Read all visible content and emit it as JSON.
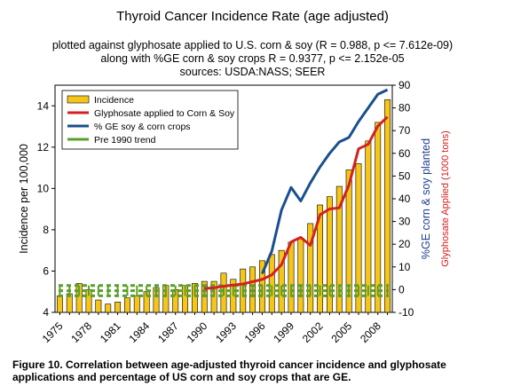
{
  "header": {
    "title": "Thyroid Cancer Incidence Rate (age adjusted)",
    "subtitle_lines": [
      "plotted against glyphosate applied to U.S. corn & soy (R = 0.988, p <= 7.612e-09)",
      "along with %GE corn & soy crops R = 0.9377, p <= 2.152e-05",
      "sources: USDA:NASS; SEER"
    ]
  },
  "caption": "Figure 10. Correlation between age-adjusted thyroid cancer incidence and glyphosate applications and percentage of US corn and soy crops that are GE.",
  "chart_data": {
    "type": "bar",
    "title": "Thyroid Cancer Incidence Rate (age adjusted)",
    "x": [
      1975,
      1976,
      1977,
      1978,
      1979,
      1980,
      1981,
      1982,
      1983,
      1984,
      1985,
      1986,
      1987,
      1988,
      1989,
      1990,
      1991,
      1992,
      1993,
      1994,
      1995,
      1996,
      1997,
      1998,
      1999,
      2000,
      2001,
      2002,
      2003,
      2004,
      2005,
      2006,
      2007,
      2008,
      2009
    ],
    "x_tick_labels": [
      "1975",
      "1978",
      "1981",
      "1984",
      "1987",
      "1990",
      "1993",
      "1996",
      "1999",
      "2002",
      "2005",
      "2008"
    ],
    "x_tick_values": [
      1975,
      1978,
      1981,
      1984,
      1987,
      1990,
      1993,
      1996,
      1999,
      2002,
      2005,
      2008
    ],
    "axes": {
      "left": {
        "label": "Incidence per 100,000",
        "ylim": [
          4,
          15
        ],
        "ticks": [
          4,
          6,
          8,
          10,
          12,
          14
        ]
      },
      "right1": {
        "label": "%GE corn & soy planted",
        "ylim": [
          -10,
          90
        ],
        "ticks": [
          -10,
          0,
          10,
          20,
          30,
          40,
          50,
          60,
          70,
          80,
          90
        ],
        "color": "#1f3f8f"
      },
      "right2": {
        "label": "Glyphosate Applied (1000 tons)",
        "ylim": [
          -10,
          90
        ],
        "color": "#d42020"
      }
    },
    "series": [
      {
        "name": "Incidence",
        "kind": "bar",
        "axis": "left",
        "color": "#f5c518",
        "values": [
          4.8,
          4.9,
          5.4,
          5.1,
          4.6,
          4.4,
          4.5,
          4.7,
          4.8,
          5.0,
          5.2,
          5.3,
          5.1,
          5.3,
          5.4,
          5.5,
          5.5,
          5.9,
          5.6,
          6.1,
          6.2,
          6.5,
          6.8,
          7.0,
          7.4,
          7.6,
          8.3,
          9.2,
          9.6,
          10.1,
          10.9,
          11.2,
          12.3,
          13.2,
          14.3
        ]
      },
      {
        "name": "Glyphosate applied to Corn & Soy",
        "kind": "line",
        "axis": "right2",
        "color": "#d42020",
        "x": [
          1990,
          1991,
          1992,
          1993,
          1994,
          1995,
          1996,
          1997,
          1998,
          1999,
          2000,
          2001,
          2002,
          2003,
          2004,
          2005,
          2006,
          2007,
          2008,
          2009
        ],
        "values": [
          0.5,
          0.8,
          1.5,
          2.0,
          2.5,
          3.5,
          4.5,
          6.5,
          11.0,
          21.0,
          23.0,
          19.5,
          33.0,
          35.5,
          36.0,
          46.0,
          62.0,
          64.0,
          72.0,
          76.0
        ]
      },
      {
        "name": "% GE soy & corn crops",
        "kind": "line",
        "axis": "right1",
        "color": "#1a4f8f",
        "x": [
          1996,
          1997,
          1998,
          1999,
          2000,
          2001,
          2002,
          2003,
          2004,
          2005,
          2006,
          2007,
          2008,
          2009
        ],
        "values": [
          7,
          17,
          35,
          45,
          39,
          47,
          54,
          60,
          65,
          67,
          74,
          80,
          86,
          88
        ]
      },
      {
        "name": "Pre 1990 trend",
        "kind": "dashed-band",
        "axis": "left",
        "color": "#5aa02c",
        "bands": [
          5.3,
          5.05,
          4.8
        ]
      }
    ],
    "legend_position": "top-left",
    "grid": false
  }
}
